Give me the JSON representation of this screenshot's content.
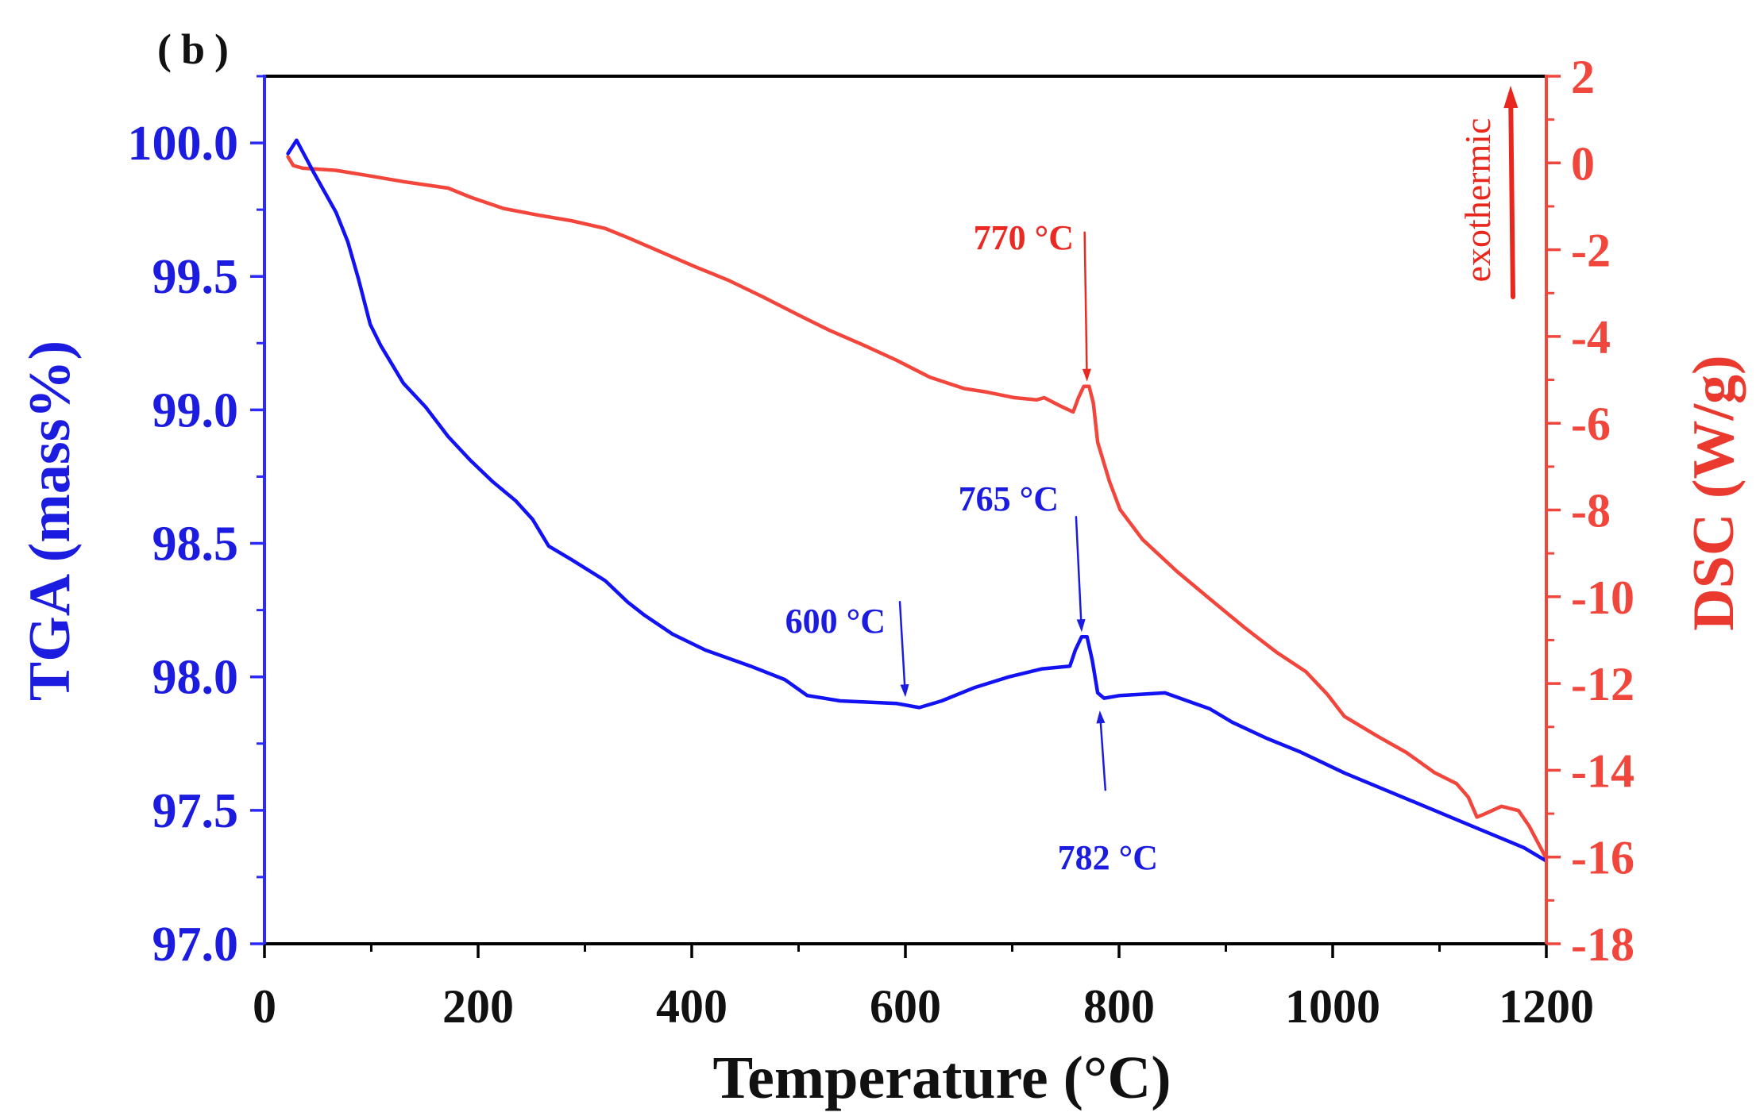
{
  "chart_data": {
    "type": "line",
    "panel_label": "(b)",
    "grid": false,
    "x_axis": {
      "label": "Temperature (°C)",
      "range": [
        0,
        1200
      ],
      "major_ticks": [
        0,
        200,
        400,
        600,
        800,
        1000,
        1200
      ],
      "tick_labels": [
        "0",
        "200",
        "400",
        "600",
        "800",
        "1000",
        "1200"
      ],
      "minor_step": 100
    },
    "y_left": {
      "label": "TGA (mass%)",
      "range": [
        97.0,
        100.25
      ],
      "major_ticks": [
        100.0,
        99.5,
        99.0,
        98.5,
        98.0,
        97.5,
        97.0
      ],
      "tick_labels": [
        "100.0",
        "99.5",
        "99.0",
        "98.5",
        "98.0",
        "97.5",
        "97.0"
      ],
      "minor_step": 0.25
    },
    "y_right": {
      "label": "DSC (W/g)",
      "range": [
        -18,
        2
      ],
      "major_ticks": [
        2,
        0,
        -2,
        -4,
        -6,
        -8,
        -10,
        -12,
        -14,
        -16,
        -18
      ],
      "tick_labels": [
        "2",
        "0",
        "-2",
        "-4",
        "-6",
        "-8",
        "-10",
        "-12",
        "-14",
        "-16",
        "-18"
      ],
      "minor_step": 1
    },
    "tga": {
      "x": [
        22,
        30,
        46,
        67,
        78,
        88,
        99,
        109,
        130,
        151,
        172,
        193,
        214,
        235,
        251,
        266,
        287,
        319,
        340,
        356,
        382,
        413,
        455,
        487,
        508,
        539,
        592,
        613,
        634,
        665,
        697,
        728,
        754,
        759,
        765,
        770,
        775,
        780,
        786,
        801,
        843,
        864,
        885,
        906,
        938,
        969,
        1011,
        1053,
        1095,
        1137,
        1179,
        1200
      ],
      "y": [
        99.96,
        100.01,
        99.89,
        99.74,
        99.63,
        99.49,
        99.32,
        99.24,
        99.1,
        99.01,
        98.9,
        98.81,
        98.73,
        98.66,
        98.59,
        98.49,
        98.44,
        98.36,
        98.28,
        98.23,
        98.16,
        98.1,
        98.04,
        97.99,
        97.93,
        97.91,
        97.9,
        97.885,
        97.91,
        97.96,
        98.0,
        98.03,
        98.04,
        98.1,
        98.15,
        98.15,
        98.06,
        97.94,
        97.92,
        97.93,
        97.94,
        97.91,
        97.88,
        97.83,
        97.77,
        97.72,
        97.64,
        97.57,
        97.5,
        97.43,
        97.36,
        97.31
      ],
      "annotations": [
        {
          "text": "765 °C",
          "x": 765
        },
        {
          "text": "600 °C",
          "x": 600
        },
        {
          "text": "782 °C",
          "x": 782
        }
      ]
    },
    "dsc": {
      "x": [
        22,
        27,
        36,
        67,
        99,
        130,
        172,
        193,
        224,
        256,
        287,
        319,
        340,
        371,
        403,
        434,
        466,
        497,
        529,
        560,
        592,
        623,
        655,
        676,
        702,
        723,
        730,
        744,
        757,
        762,
        767,
        772,
        776,
        780,
        791,
        801,
        822,
        854,
        885,
        917,
        948,
        975,
        995,
        1011,
        1043,
        1069,
        1095,
        1116,
        1127,
        1135,
        1142,
        1158,
        1174,
        1184,
        1199
      ],
      "y": [
        0.14,
        -0.06,
        -0.12,
        -0.17,
        -0.3,
        -0.43,
        -0.58,
        -0.79,
        -1.05,
        -1.2,
        -1.33,
        -1.51,
        -1.72,
        -2.05,
        -2.39,
        -2.7,
        -3.08,
        -3.47,
        -3.86,
        -4.19,
        -4.55,
        -4.94,
        -5.2,
        -5.28,
        -5.41,
        -5.46,
        -5.41,
        -5.59,
        -5.74,
        -5.41,
        -5.15,
        -5.15,
        -5.54,
        -6.44,
        -7.34,
        -7.99,
        -8.68,
        -9.41,
        -10.05,
        -10.7,
        -11.29,
        -11.73,
        -12.25,
        -12.76,
        -13.23,
        -13.59,
        -14.05,
        -14.31,
        -14.62,
        -15.08,
        -15.01,
        -14.83,
        -14.93,
        -15.29,
        -15.99
      ],
      "annotations": [
        {
          "text": "770 °C",
          "x": 770
        }
      ]
    },
    "exothermic_label": "exothermic"
  },
  "colors": {
    "axis": "#000000",
    "tga_line": "#1212f2",
    "tga_axis": "#2a2aff",
    "tga_text": "#1c1ce0",
    "dsc_line": "#f2463c",
    "dsc_axis": "#f0463c",
    "dsc_text": "#ea2a22",
    "exo": "#e8281e"
  }
}
